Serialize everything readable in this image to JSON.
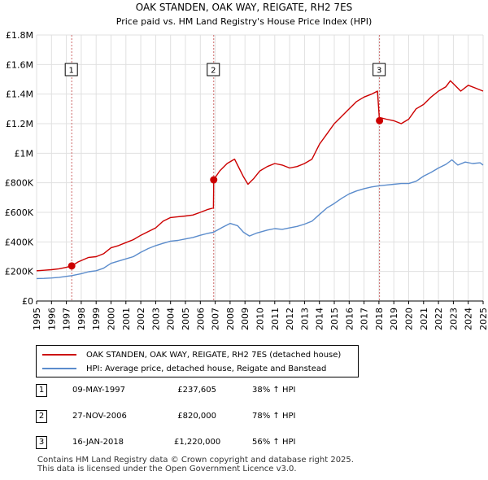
{
  "chart_data": {
    "type": "line",
    "title": "OAK STANDEN, OAK WAY, REIGATE, RH2 7ES",
    "subtitle": "Price paid vs. HM Land Registry's House Price Index (HPI)",
    "xlabel": "",
    "ylabel": "",
    "xlim": [
      1995.0,
      2025.0
    ],
    "ylim": [
      0,
      1800000
    ],
    "y_ticks": [
      0,
      200000,
      400000,
      600000,
      800000,
      1000000,
      1200000,
      1400000,
      1600000,
      1800000
    ],
    "y_tick_labels": [
      "£0",
      "£200K",
      "£400K",
      "£600K",
      "£800K",
      "£1M",
      "£1.2M",
      "£1.4M",
      "£1.6M",
      "£1.8M"
    ],
    "x_ticks": [
      1995,
      1996,
      1997,
      1998,
      1999,
      2000,
      2001,
      2002,
      2003,
      2004,
      2005,
      2006,
      2007,
      2008,
      2009,
      2010,
      2011,
      2012,
      2013,
      2014,
      2015,
      2016,
      2017,
      2018,
      2019,
      2020,
      2021,
      2022,
      2023,
      2024,
      2025
    ],
    "x_tick_labels": [
      "1995",
      "1996",
      "1997",
      "1998",
      "1999",
      "2000",
      "2001",
      "2002",
      "2003",
      "2004",
      "2005",
      "2006",
      "2007",
      "2008",
      "2009",
      "2010",
      "2011",
      "2012",
      "2013",
      "2014",
      "2015",
      "2016",
      "2017",
      "2018",
      "2019",
      "2020",
      "2021",
      "2022",
      "2023",
      "2024",
      "2025"
    ],
    "grid": true,
    "series": [
      {
        "name": "OAK STANDEN, OAK WAY, REIGATE, RH2 7ES (detached house)",
        "color": "#cc0000",
        "x": [
          1995.0,
          1995.5,
          1996.0,
          1996.5,
          1997.0,
          1997.36,
          1997.8,
          1998.5,
          1999.0,
          1999.5,
          2000.0,
          2000.5,
          2001.0,
          2001.5,
          2002.0,
          2002.5,
          2003.0,
          2003.5,
          2004.0,
          2004.5,
          2005.0,
          2005.5,
          2006.0,
          2006.5,
          2006.88,
          2006.9,
          2007.3,
          2007.8,
          2008.3,
          2008.6,
          2008.9,
          2009.2,
          2009.6,
          2010.0,
          2010.5,
          2011.0,
          2011.5,
          2012.0,
          2012.5,
          2013.0,
          2013.5,
          2014.0,
          2014.5,
          2015.0,
          2015.5,
          2016.0,
          2016.5,
          2017.0,
          2017.5,
          2017.9,
          2018.04,
          2018.1,
          2018.5,
          2019.0,
          2019.5,
          2020.0,
          2020.5,
          2021.0,
          2021.5,
          2022.0,
          2022.5,
          2022.8,
          2023.0,
          2023.5,
          2024.0,
          2024.5,
          2025.0
        ],
        "y": [
          205000,
          208000,
          212000,
          218000,
          228000,
          237605,
          265000,
          295000,
          300000,
          320000,
          360000,
          375000,
          395000,
          415000,
          445000,
          470000,
          495000,
          540000,
          565000,
          570000,
          575000,
          582000,
          600000,
          620000,
          630000,
          820000,
          880000,
          930000,
          960000,
          900000,
          840000,
          790000,
          830000,
          880000,
          910000,
          930000,
          920000,
          900000,
          910000,
          930000,
          960000,
          1060000,
          1130000,
          1200000,
          1250000,
          1300000,
          1350000,
          1380000,
          1400000,
          1420000,
          1220000,
          1240000,
          1230000,
          1220000,
          1200000,
          1230000,
          1300000,
          1330000,
          1380000,
          1420000,
          1450000,
          1490000,
          1470000,
          1420000,
          1460000,
          1440000,
          1420000
        ]
      },
      {
        "name": "HPI: Average price, detached house, Reigate and Banstead",
        "color": "#5b8ccc",
        "x": [
          1995.0,
          1995.5,
          1996.0,
          1996.5,
          1997.0,
          1997.36,
          1998.0,
          1998.5,
          1999.0,
          1999.5,
          2000.0,
          2000.5,
          2001.0,
          2001.5,
          2002.0,
          2002.5,
          2003.0,
          2003.5,
          2004.0,
          2004.5,
          2005.0,
          2005.5,
          2006.0,
          2006.5,
          2006.88,
          2007.5,
          2008.0,
          2008.5,
          2008.9,
          2009.3,
          2009.8,
          2010.5,
          2011.0,
          2011.5,
          2012.0,
          2012.5,
          2013.0,
          2013.5,
          2014.0,
          2014.5,
          2015.0,
          2015.5,
          2016.0,
          2016.5,
          2017.0,
          2017.5,
          2018.04,
          2018.5,
          2019.0,
          2019.5,
          2020.0,
          2020.5,
          2021.0,
          2021.5,
          2022.0,
          2022.5,
          2022.9,
          2023.3,
          2023.8,
          2024.3,
          2024.8,
          2025.0
        ],
        "y": [
          152000,
          153000,
          156000,
          160000,
          167000,
          172000,
          185000,
          198000,
          205000,
          222000,
          255000,
          270000,
          285000,
          300000,
          330000,
          355000,
          375000,
          390000,
          405000,
          410000,
          420000,
          430000,
          445000,
          458000,
          465000,
          500000,
          525000,
          510000,
          465000,
          440000,
          460000,
          480000,
          490000,
          485000,
          495000,
          505000,
          520000,
          540000,
          585000,
          630000,
          660000,
          695000,
          725000,
          745000,
          760000,
          772000,
          780000,
          785000,
          790000,
          795000,
          795000,
          810000,
          845000,
          870000,
          900000,
          925000,
          955000,
          920000,
          940000,
          930000,
          935000,
          920000
        ]
      }
    ],
    "markers": [
      {
        "label": "1",
        "x": 1997.36,
        "y": 237605
      },
      {
        "label": "2",
        "x": 2006.9,
        "y": 820000
      },
      {
        "label": "3",
        "x": 2018.04,
        "y": 1220000
      }
    ]
  },
  "legend": {
    "items": [
      {
        "label": "OAK STANDEN, OAK WAY, REIGATE, RH2 7ES (detached house)",
        "color": "#cc0000"
      },
      {
        "label": "HPI: Average price, detached house, Reigate and Banstead",
        "color": "#5b8ccc"
      }
    ]
  },
  "sales": [
    {
      "num": "1",
      "date": "09-MAY-1997",
      "price": "£237,605",
      "hpi": "38% ↑ HPI"
    },
    {
      "num": "2",
      "date": "27-NOV-2006",
      "price": "£820,000",
      "hpi": "78% ↑ HPI"
    },
    {
      "num": "3",
      "date": "16-JAN-2018",
      "price": "£1,220,000",
      "hpi": "56% ↑ HPI"
    }
  ],
  "footer": {
    "line1": "Contains HM Land Registry data © Crown copyright and database right 2025.",
    "line2": "This data is licensed under the Open Government Licence v3.0."
  },
  "colors": {
    "price_line": "#cc0000",
    "hpi_line": "#5b8ccc",
    "grid": "#e0e0e0",
    "plot_bg": "#ffffff",
    "marker_line": "#cc6666"
  }
}
